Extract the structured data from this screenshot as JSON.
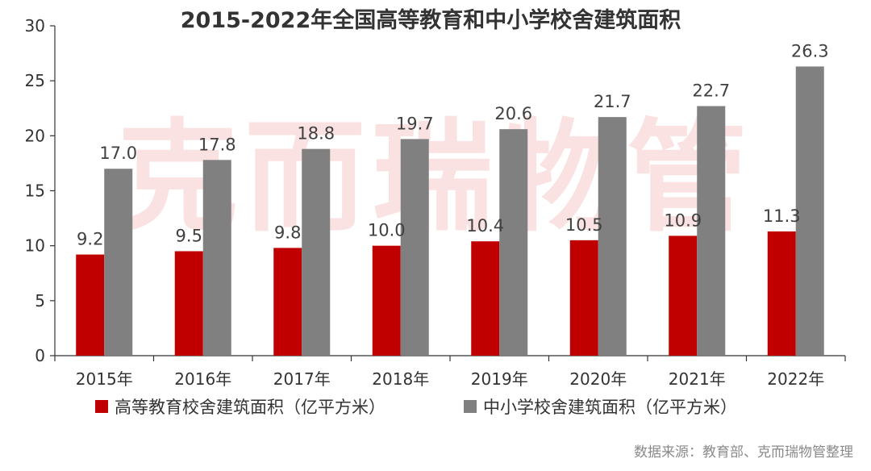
{
  "chart_data": {
    "type": "bar",
    "title": "2015-2022年全国高等教育和中小学校舍建筑面积",
    "categories": [
      "2015年",
      "2016年",
      "2017年",
      "2018年",
      "2019年",
      "2020年",
      "2021年",
      "2022年"
    ],
    "series": [
      {
        "name": "高等教育校舍建筑面积（亿平方米）",
        "color": "#c00000",
        "values": [
          9.2,
          9.5,
          9.8,
          10.0,
          10.4,
          10.5,
          10.9,
          11.3
        ],
        "labels": [
          "9.2",
          "9.5",
          "9.8",
          "10.0",
          "10.4",
          "10.5",
          "10.9",
          "11.3"
        ]
      },
      {
        "name": "中小学校舍建筑面积（亿平方米）",
        "color": "#808080",
        "values": [
          17.0,
          17.8,
          18.8,
          19.7,
          20.6,
          21.7,
          22.7,
          26.3
        ],
        "labels": [
          "17.0",
          "17.8",
          "18.8",
          "19.7",
          "20.6",
          "21.7",
          "22.7",
          "26.3"
        ]
      }
    ],
    "ylim": [
      0,
      30
    ],
    "yticks": [
      0,
      5,
      10,
      15,
      20,
      25,
      30
    ],
    "grid": false,
    "legend": "bottom",
    "source": "数据来源：教育部、克而瑞物管整理",
    "watermark": "克而瑞物管"
  }
}
